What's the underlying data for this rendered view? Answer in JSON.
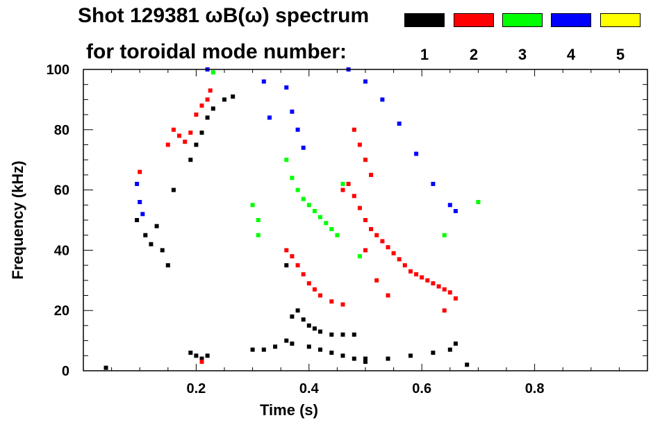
{
  "title": {
    "line1": "Shot 129381 ωB(ω) spectrum",
    "line2": "for toroidal mode number:"
  },
  "legend": [
    {
      "mode": "1",
      "color": "#000000"
    },
    {
      "mode": "2",
      "color": "#ff0000"
    },
    {
      "mode": "3",
      "color": "#00ff00"
    },
    {
      "mode": "4",
      "color": "#0000ff"
    },
    {
      "mode": "5",
      "color": "#ffff00"
    }
  ],
  "chart_data": {
    "type": "scatter",
    "title": "Shot 129381 ωB(ω) spectrum",
    "xlabel": "Time (s)",
    "ylabel": "Frequency (kHz)",
    "xlim": [
      0.0,
      1.0
    ],
    "ylim": [
      0,
      100
    ],
    "xticks": [
      0.2,
      0.4,
      0.6,
      0.8
    ],
    "xtick_labels": [
      "0.2",
      "0.4",
      "0.6",
      "0.8"
    ],
    "yticks": [
      0,
      20,
      40,
      60,
      80,
      100
    ],
    "ytick_labels": [
      "0",
      "20",
      "40",
      "60",
      "80",
      "100"
    ],
    "series": [
      {
        "name": "n=1",
        "color": "#000000",
        "points": [
          [
            0.04,
            1
          ],
          [
            0.095,
            50
          ],
          [
            0.11,
            45
          ],
          [
            0.12,
            42
          ],
          [
            0.13,
            48
          ],
          [
            0.14,
            40
          ],
          [
            0.15,
            35
          ],
          [
            0.16,
            60
          ],
          [
            0.19,
            70
          ],
          [
            0.2,
            75
          ],
          [
            0.21,
            79
          ],
          [
            0.22,
            84
          ],
          [
            0.23,
            87
          ],
          [
            0.25,
            90
          ],
          [
            0.265,
            91
          ],
          [
            0.19,
            6
          ],
          [
            0.2,
            5
          ],
          [
            0.21,
            4
          ],
          [
            0.22,
            5
          ],
          [
            0.3,
            7
          ],
          [
            0.32,
            7
          ],
          [
            0.34,
            8
          ],
          [
            0.36,
            10
          ],
          [
            0.37,
            18
          ],
          [
            0.38,
            20
          ],
          [
            0.39,
            17
          ],
          [
            0.4,
            15
          ],
          [
            0.41,
            14
          ],
          [
            0.42,
            13
          ],
          [
            0.44,
            12
          ],
          [
            0.46,
            12
          ],
          [
            0.48,
            12
          ],
          [
            0.36,
            35
          ],
          [
            0.37,
            9
          ],
          [
            0.4,
            8
          ],
          [
            0.42,
            7
          ],
          [
            0.44,
            6
          ],
          [
            0.46,
            5
          ],
          [
            0.48,
            4
          ],
          [
            0.5,
            3
          ],
          [
            0.5,
            4
          ],
          [
            0.54,
            4
          ],
          [
            0.58,
            5
          ],
          [
            0.62,
            6
          ],
          [
            0.65,
            7
          ],
          [
            0.66,
            9
          ],
          [
            0.68,
            2
          ]
        ]
      },
      {
        "name": "n=2",
        "color": "#ff0000",
        "points": [
          [
            0.1,
            66
          ],
          [
            0.15,
            75
          ],
          [
            0.16,
            80
          ],
          [
            0.17,
            78
          ],
          [
            0.18,
            76
          ],
          [
            0.19,
            79
          ],
          [
            0.2,
            85
          ],
          [
            0.21,
            88
          ],
          [
            0.22,
            90
          ],
          [
            0.225,
            93
          ],
          [
            0.21,
            3
          ],
          [
            0.36,
            40
          ],
          [
            0.37,
            38
          ],
          [
            0.38,
            35
          ],
          [
            0.39,
            32
          ],
          [
            0.4,
            29
          ],
          [
            0.41,
            27
          ],
          [
            0.42,
            25
          ],
          [
            0.44,
            23
          ],
          [
            0.46,
            22
          ],
          [
            0.46,
            60
          ],
          [
            0.47,
            62
          ],
          [
            0.48,
            58
          ],
          [
            0.49,
            54
          ],
          [
            0.5,
            50
          ],
          [
            0.51,
            47
          ],
          [
            0.52,
            45
          ],
          [
            0.53,
            43
          ],
          [
            0.54,
            41
          ],
          [
            0.55,
            39
          ],
          [
            0.56,
            37
          ],
          [
            0.57,
            35
          ],
          [
            0.58,
            33
          ],
          [
            0.59,
            32
          ],
          [
            0.6,
            31
          ],
          [
            0.61,
            30
          ],
          [
            0.62,
            29
          ],
          [
            0.63,
            28
          ],
          [
            0.64,
            27
          ],
          [
            0.65,
            26
          ],
          [
            0.66,
            24
          ],
          [
            0.48,
            80
          ],
          [
            0.49,
            75
          ],
          [
            0.5,
            70
          ],
          [
            0.51,
            65
          ],
          [
            0.5,
            40
          ],
          [
            0.52,
            30
          ],
          [
            0.54,
            25
          ],
          [
            0.64,
            20
          ]
        ]
      },
      {
        "name": "n=3",
        "color": "#00ff00",
        "points": [
          [
            0.23,
            99
          ],
          [
            0.3,
            55
          ],
          [
            0.31,
            50
          ],
          [
            0.31,
            45
          ],
          [
            0.36,
            70
          ],
          [
            0.37,
            64
          ],
          [
            0.38,
            60
          ],
          [
            0.39,
            57
          ],
          [
            0.4,
            55
          ],
          [
            0.41,
            53
          ],
          [
            0.42,
            51
          ],
          [
            0.43,
            49
          ],
          [
            0.44,
            47
          ],
          [
            0.45,
            45
          ],
          [
            0.46,
            62
          ],
          [
            0.49,
            38
          ],
          [
            0.64,
            45
          ],
          [
            0.7,
            56
          ]
        ]
      },
      {
        "name": "n=4",
        "color": "#0000ff",
        "points": [
          [
            0.095,
            62
          ],
          [
            0.1,
            56
          ],
          [
            0.105,
            52
          ],
          [
            0.22,
            100
          ],
          [
            0.32,
            96
          ],
          [
            0.33,
            84
          ],
          [
            0.36,
            94
          ],
          [
            0.37,
            86
          ],
          [
            0.38,
            80
          ],
          [
            0.39,
            74
          ],
          [
            0.47,
            100
          ],
          [
            0.5,
            96
          ],
          [
            0.53,
            90
          ],
          [
            0.56,
            82
          ],
          [
            0.59,
            72
          ],
          [
            0.62,
            62
          ],
          [
            0.65,
            55
          ],
          [
            0.66,
            53
          ]
        ]
      },
      {
        "name": "n=5",
        "color": "#ffff00",
        "points": []
      }
    ]
  }
}
